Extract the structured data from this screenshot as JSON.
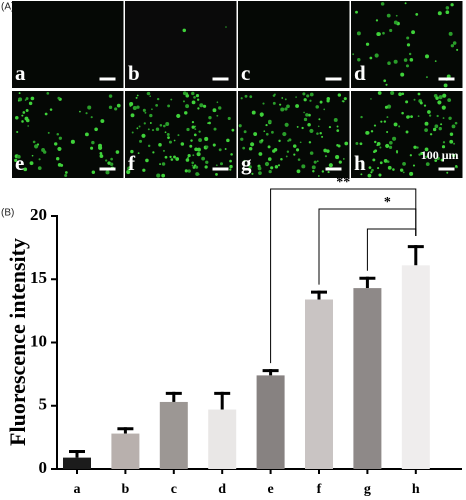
{
  "panel_a": {
    "label": "(A)",
    "images": [
      "a",
      "b",
      "c",
      "d",
      "e",
      "f",
      "g",
      "h"
    ],
    "scale_text": "100 μm"
  },
  "chart_data": {
    "type": "bar",
    "panel_label": "(B)",
    "ylabel": "Fluorescence intensity",
    "categories": [
      "a",
      "b",
      "c",
      "d",
      "e",
      "f",
      "g",
      "h"
    ],
    "values": [
      0.9,
      2.8,
      5.3,
      4.7,
      7.4,
      13.4,
      14.3,
      16.1
    ],
    "errors": [
      0.6,
      0.5,
      0.8,
      1.4,
      0.5,
      0.7,
      0.9,
      1.6
    ],
    "colors": [
      "#1c1c1c",
      "#b8b0ad",
      "#9c9794",
      "#e9e7e6",
      "#878281",
      "#c9c4c3",
      "#8e8988",
      "#efeded"
    ],
    "ylim": [
      0,
      20
    ],
    "yticks": [
      0,
      5,
      10,
      15,
      20
    ],
    "significance_labels": [
      "**",
      "*"
    ]
  }
}
